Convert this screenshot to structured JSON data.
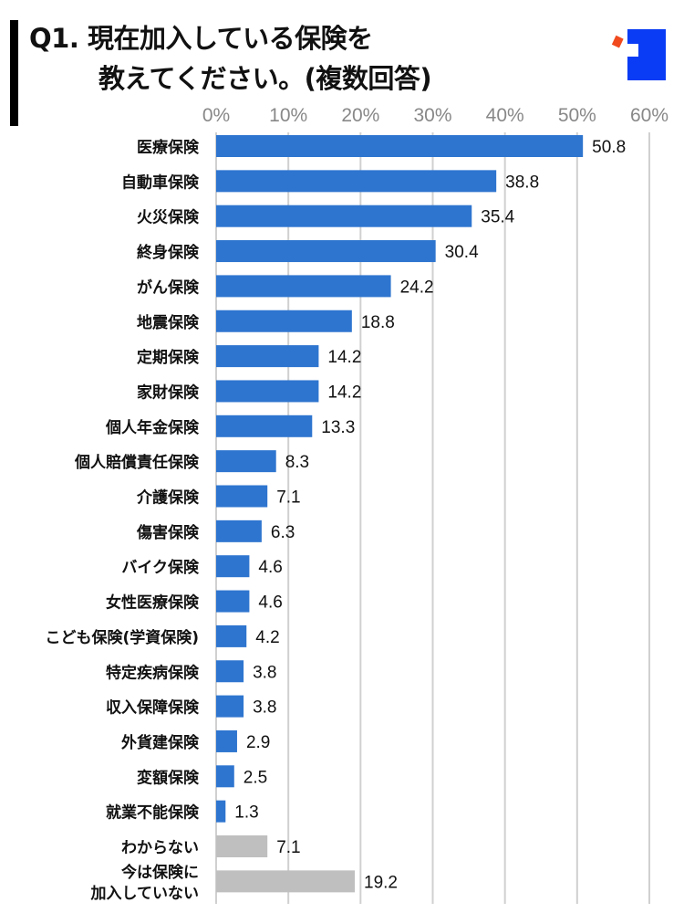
{
  "title": {
    "line1": "Q1. 現在加入している保険を",
    "line2": "教えてください。(複数回答)"
  },
  "colors": {
    "primary": "#2e75cf",
    "other": "#bfbfbf",
    "grid": "#d0d0d0",
    "axis_text": "#888888",
    "logo_blue": "#0a3cf5",
    "logo_red": "#f04a1e"
  },
  "chart_data": {
    "type": "bar",
    "orientation": "horizontal",
    "title": "Q1. 現在加入している保険を教えてください。(複数回答)",
    "xlabel": "",
    "ylabel": "",
    "xlim": [
      0,
      60
    ],
    "ticks": [
      "0%",
      "10%",
      "20%",
      "30%",
      "40%",
      "50%",
      "60%"
    ],
    "tick_values": [
      0,
      10,
      20,
      30,
      40,
      50,
      60
    ],
    "grid": true,
    "categories": [
      "医療保険",
      "自動車保険",
      "火災保険",
      "終身保険",
      "がん保険",
      "地震保険",
      "定期保険",
      "家財保険",
      "個人年金保険",
      "個人賠償責任保険",
      "介護保険",
      "傷害保険",
      "バイク保険",
      "女性医療保険",
      "こども保険(学資保険)",
      "特定疾病保険",
      "収入保障保険",
      "外貨建保険",
      "変額保険",
      "就業不能保険",
      "わからない",
      "今は保険に\n加入していない"
    ],
    "values": [
      50.8,
      38.8,
      35.4,
      30.4,
      24.2,
      18.8,
      14.2,
      14.2,
      13.3,
      8.3,
      7.1,
      6.3,
      4.6,
      4.6,
      4.2,
      3.8,
      3.8,
      2.9,
      2.5,
      1.3,
      7.1,
      19.2
    ],
    "labels": [
      "50.8",
      "38.8",
      "35.4",
      "30.4",
      "24.2",
      "18.8",
      "14.2",
      "14.2",
      "13.3",
      "8.3",
      "7.1",
      "6.3",
      "4.6",
      "4.6",
      "4.2",
      "3.8",
      "3.8",
      "2.9",
      "2.5",
      "1.3",
      "7.1",
      "19.2"
    ],
    "gray_categories": [
      "わからない",
      "今は保険に\n加入していない"
    ]
  }
}
